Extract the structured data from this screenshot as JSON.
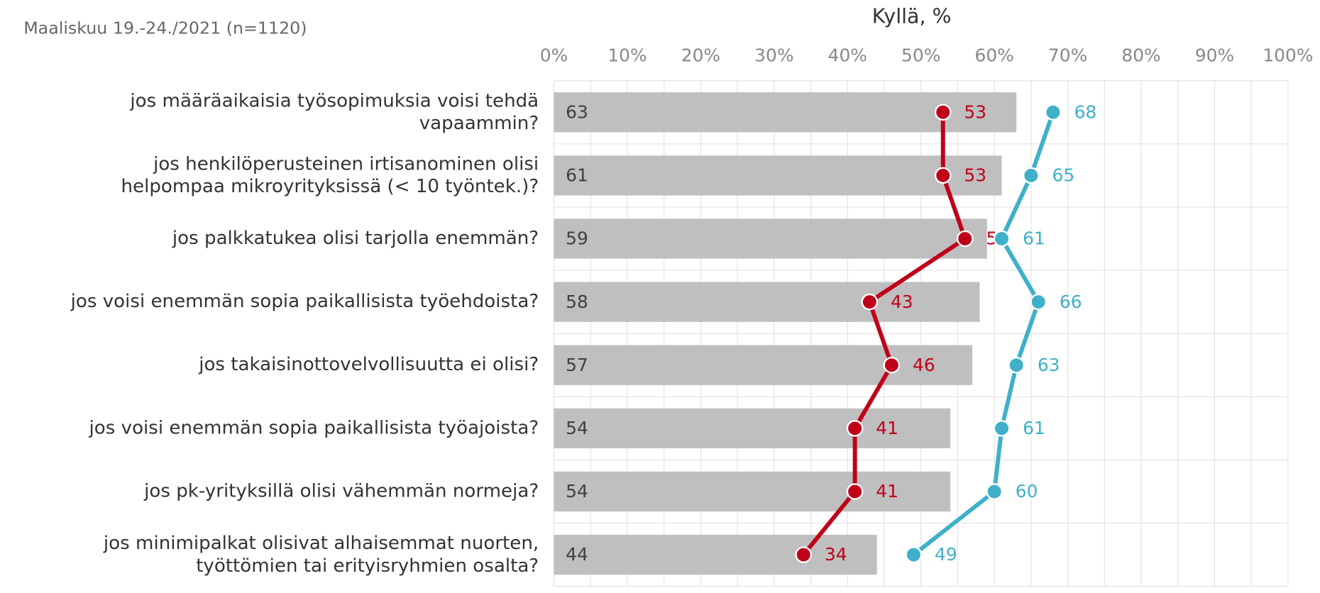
{
  "chart_data": {
    "type": "bar_line",
    "title": "Kyllä, %",
    "subtitle": "Maaliskuu 19.-24./2021 (n=1120)",
    "orientation": "horizontal",
    "categories": [
      "jos määräaikaisia työsopimuksia voisi tehdä\nvapaammin?",
      "jos henkilöperusteinen irtisanominen olisi\nhelpompaa mikroyrityksissä (< 10 työntek.)?",
      "jos palkkatukea olisi tarjolla enemmän?",
      "jos voisi enemmän sopia paikallisista työehdoista?",
      "jos takaisinottovelvollisuutta ei olisi?",
      "jos voisi enemmän sopia paikallisista työajoista?",
      "jos pk-yrityksillä olisi vähemmän normeja?",
      "jos minimipalkat olisivat alhaisemmat nuorten,\ntyöttömien tai erityisryhmien osalta?"
    ],
    "series": [
      {
        "type": "bar",
        "color": "#bfbfbf",
        "values": [
          63,
          61,
          59,
          58,
          57,
          54,
          54,
          44
        ]
      },
      {
        "type": "line",
        "color": "#c00018",
        "values": [
          53,
          53,
          56,
          43,
          46,
          41,
          41,
          34
        ]
      },
      {
        "type": "line",
        "color": "#3fb0c9",
        "values": [
          68,
          65,
          61,
          66,
          63,
          61,
          60,
          49
        ]
      }
    ],
    "xlim": [
      0,
      100
    ],
    "xticks": [
      {
        "value": 0,
        "label": "0%"
      },
      {
        "value": 10,
        "label": "10%"
      },
      {
        "value": 20,
        "label": "20%"
      },
      {
        "value": 30,
        "label": "30%"
      },
      {
        "value": 40,
        "label": "40%"
      },
      {
        "value": 50,
        "label": "50%"
      },
      {
        "value": 60,
        "label": "60%"
      },
      {
        "value": 70,
        "label": "70%"
      },
      {
        "value": 80,
        "label": "80%"
      },
      {
        "value": 90,
        "label": "90%"
      },
      {
        "value": 100,
        "label": "100%"
      }
    ],
    "grid": true
  }
}
